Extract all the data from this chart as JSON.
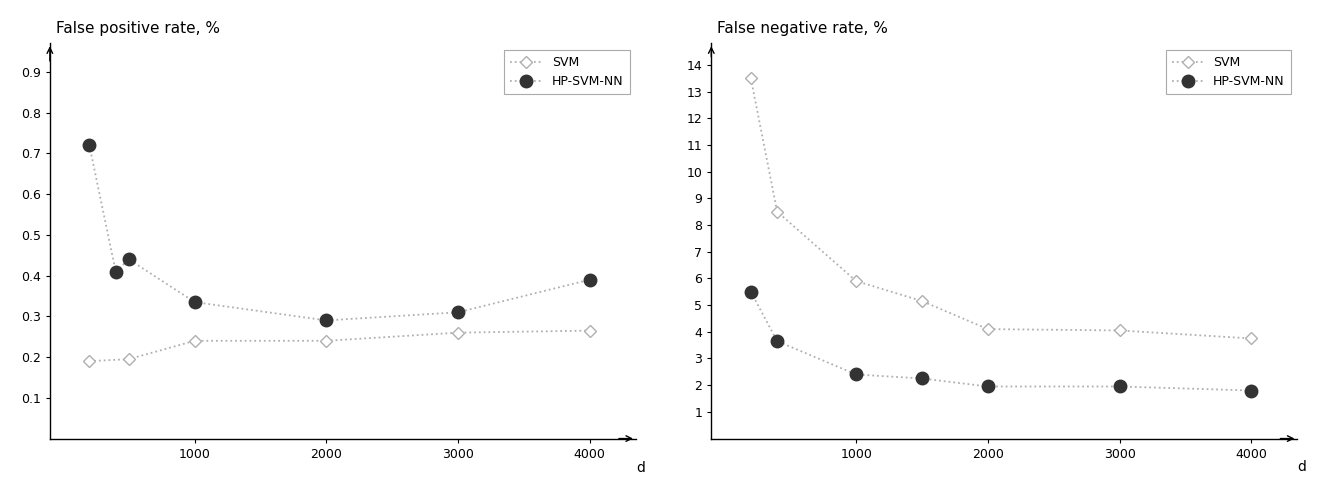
{
  "fpr_svm_x": [
    200,
    500,
    1000,
    2000,
    3000,
    4000
  ],
  "fpr_svm_y": [
    0.19,
    0.195,
    0.24,
    0.24,
    0.26,
    0.265
  ],
  "fpr_hpsvm_x": [
    200,
    400,
    500,
    1000,
    2000,
    3000,
    4000
  ],
  "fpr_hpsvm_y": [
    0.72,
    0.41,
    0.44,
    0.335,
    0.29,
    0.31,
    0.39
  ],
  "fnr_svm_x": [
    200,
    400,
    1000,
    1500,
    2000,
    3000,
    4000
  ],
  "fnr_svm_y": [
    13.5,
    8.5,
    5.9,
    5.15,
    4.1,
    4.05,
    3.75
  ],
  "fnr_hpsvm_x": [
    200,
    400,
    1000,
    1500,
    2000,
    3000,
    4000
  ],
  "fnr_hpsvm_y": [
    5.5,
    3.65,
    2.4,
    2.25,
    1.95,
    1.95,
    1.8
  ],
  "fpr_title": "False positive rate, %",
  "fnr_title": "False negative rate, %",
  "legend_svm": "SVM",
  "legend_hpsvm": "HP-SVM-NN",
  "fpr_ylim": [
    0,
    0.97
  ],
  "fpr_yticks": [
    0.1,
    0.2,
    0.3,
    0.4,
    0.5,
    0.6,
    0.7,
    0.8,
    0.9
  ],
  "fnr_ylim": [
    0,
    14.8
  ],
  "fnr_yticks": [
    1,
    2,
    3,
    4,
    5,
    6,
    7,
    8,
    9,
    10,
    11,
    12,
    13,
    14
  ],
  "xticks": [
    1000,
    2000,
    3000,
    4000
  ],
  "xlim": [
    -100,
    4350
  ],
  "line_color": "#b0b0b0",
  "filled_color": "#333333",
  "bg_color": "#ffffff",
  "fontsize_title": 11,
  "fontsize_tick": 9,
  "fontsize_legend": 9
}
